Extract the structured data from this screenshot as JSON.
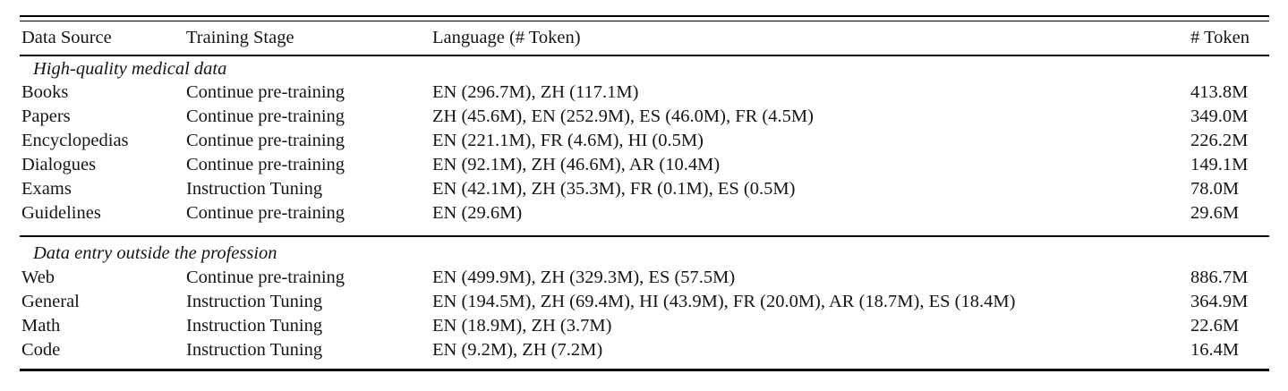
{
  "table": {
    "columns": {
      "source": "Data Source",
      "stage": "Training Stage",
      "languages": "Language (# Token)",
      "tokens": "# Token"
    },
    "sections": [
      {
        "title": "High-quality medical data",
        "rows": [
          {
            "source": "Books",
            "stage": "Continue pre-training",
            "languages": "EN (296.7M), ZH (117.1M)",
            "tokens": "413.8M"
          },
          {
            "source": "Papers",
            "stage": "Continue pre-training",
            "languages": "ZH (45.6M), EN (252.9M), ES (46.0M), FR (4.5M)",
            "tokens": "349.0M"
          },
          {
            "source": "Encyclopedias",
            "stage": "Continue pre-training",
            "languages": "EN (221.1M), FR (4.6M), HI (0.5M)",
            "tokens": "226.2M"
          },
          {
            "source": "Dialogues",
            "stage": "Continue pre-training",
            "languages": "EN (92.1M), ZH (46.6M), AR (10.4M)",
            "tokens": "149.1M"
          },
          {
            "source": "Exams",
            "stage": "Instruction Tuning",
            "languages": "EN (42.1M), ZH (35.3M), FR (0.1M), ES (0.5M)",
            "tokens": "78.0M"
          },
          {
            "source": "Guidelines",
            "stage": "Continue pre-training",
            "languages": "EN (29.6M)",
            "tokens": "29.6M"
          }
        ]
      },
      {
        "title": "Data entry outside the profession",
        "rows": [
          {
            "source": "Web",
            "stage": "Continue pre-training",
            "languages": "EN (499.9M), ZH (329.3M), ES (57.5M)",
            "tokens": "886.7M"
          },
          {
            "source": "General",
            "stage": "Instruction Tuning",
            "languages": "EN (194.5M), ZH (69.4M), HI (43.9M), FR (20.0M), AR (18.7M), ES (18.4M)",
            "tokens": "364.9M"
          },
          {
            "source": "Math",
            "stage": "Instruction Tuning",
            "languages": "EN (18.9M), ZH (3.7M)",
            "tokens": "22.6M"
          },
          {
            "source": "Code",
            "stage": "Instruction Tuning",
            "languages": "EN (9.2M), ZH (7.2M)",
            "tokens": "16.4M"
          }
        ]
      }
    ]
  },
  "colors": {
    "text": "#151515",
    "rule": "#000000",
    "background": "#ffffff"
  }
}
